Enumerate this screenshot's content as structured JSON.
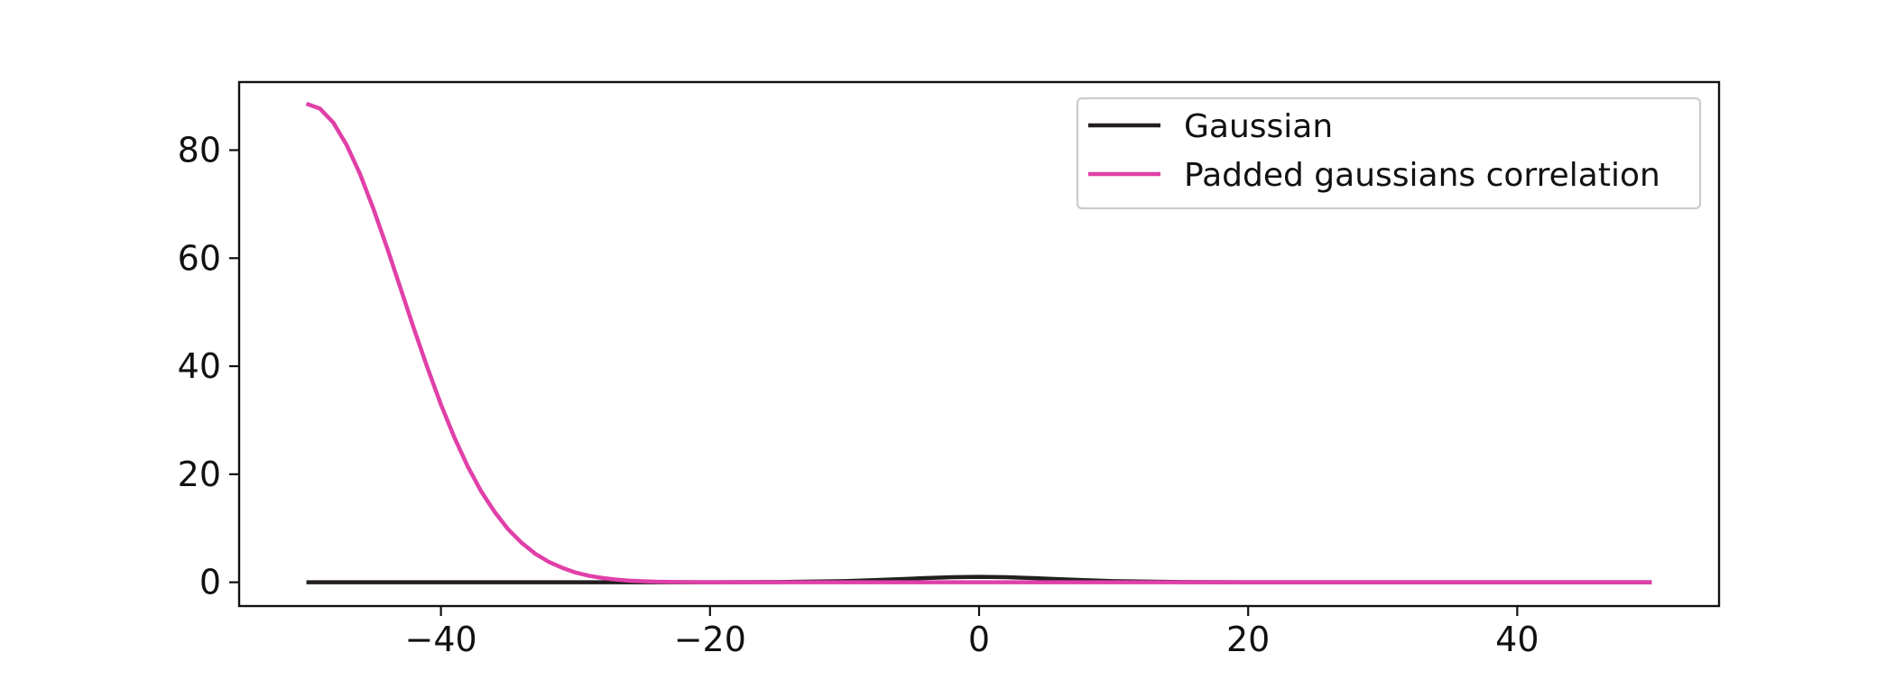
{
  "chart_data": {
    "type": "line",
    "title": "",
    "xlabel": "",
    "ylabel": "",
    "xlim": [
      -55,
      55
    ],
    "ylim": [
      -4.4,
      92.6
    ],
    "x_ticks": [
      -40,
      -20,
      0,
      20,
      40
    ],
    "y_ticks": [
      0,
      20,
      40,
      60,
      80
    ],
    "x_tick_labels": [
      "−40",
      "−20",
      "0",
      "20",
      "40"
    ],
    "y_tick_labels": [
      "0",
      "20",
      "40",
      "60",
      "80"
    ],
    "grid": false,
    "legend_position": "top-right",
    "series": [
      {
        "name": "Gaussian",
        "color": "#231f20",
        "x": [
          -50,
          -45,
          -40,
          -35,
          -30,
          -25,
          -20,
          -15,
          -10,
          -8,
          -6,
          -4,
          -2,
          0,
          2,
          4,
          6,
          8,
          10,
          15,
          20,
          25,
          30,
          35,
          40,
          45,
          50
        ],
        "y": [
          0,
          0,
          0,
          0,
          0,
          0,
          0.01,
          0.04,
          0.21,
          0.37,
          0.57,
          0.78,
          0.94,
          1.0,
          0.94,
          0.78,
          0.57,
          0.37,
          0.21,
          0.04,
          0.01,
          0,
          0,
          0,
          0,
          0,
          0
        ]
      },
      {
        "name": "Padded gaussians correlation",
        "color": "#e040a8",
        "x": [
          -50,
          -49,
          -48,
          -47,
          -46,
          -45,
          -44,
          -43,
          -42,
          -41,
          -40,
          -39,
          -38,
          -37,
          -36,
          -35,
          -34,
          -33,
          -32,
          -31,
          -30,
          -29,
          -28,
          -27,
          -26,
          -25,
          -24,
          -23,
          -22,
          -21,
          -20,
          -15,
          -10,
          -5,
          0,
          10,
          20,
          30,
          40,
          50
        ],
        "y": [
          88.6,
          87.7,
          85.1,
          80.9,
          75.5,
          69.0,
          61.9,
          54.4,
          46.9,
          39.7,
          32.9,
          26.8,
          21.4,
          16.8,
          13.0,
          9.8,
          7.3,
          5.3,
          3.8,
          2.7,
          1.8,
          1.2,
          0.8,
          0.5,
          0.3,
          0.2,
          0.1,
          0.06,
          0.04,
          0.02,
          0.01,
          0,
          0,
          0,
          0,
          0,
          0,
          0,
          0,
          0
        ]
      }
    ]
  }
}
